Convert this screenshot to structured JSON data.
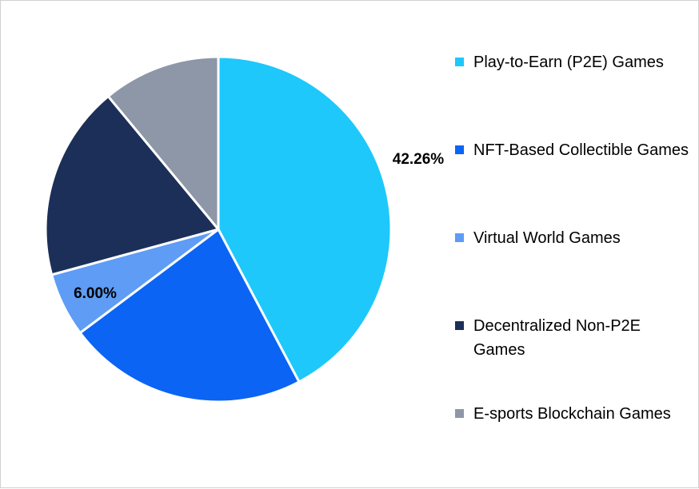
{
  "chart_data": {
    "type": "pie",
    "categories": [
      "Play-to-Earn (P2E) Games",
      "NFT-Based Collectible Games",
      "Virtual World Games",
      "Decentralized Non-P2E Games",
      "E-sports Blockchain Games"
    ],
    "values": [
      42.26,
      22.5,
      6.0,
      18.24,
      11.0
    ],
    "colors": [
      "#1ec8fb",
      "#0b64f4",
      "#5e9cf5",
      "#1c2f58",
      "#8e97a7"
    ],
    "data_labels": [
      "42.26%",
      "",
      "6.00%",
      "",
      ""
    ],
    "legend_position": "right"
  }
}
